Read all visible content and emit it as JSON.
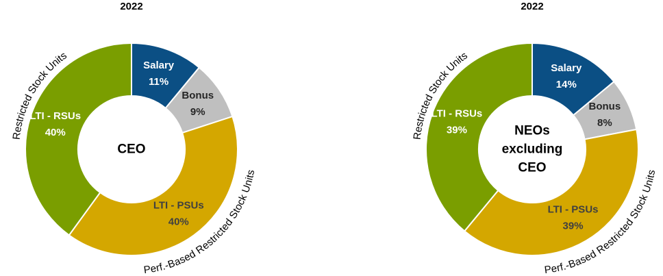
{
  "chart_data": [
    {
      "type": "donut",
      "title": "2022",
      "center_label": "CEO",
      "categories": [
        "Salary",
        "Bonus",
        "LTI - PSUs",
        "LTI - RSUs"
      ],
      "values": [
        11,
        9,
        40,
        40
      ],
      "value_labels": [
        "11%",
        "9%",
        "40%",
        "40%"
      ],
      "colors": [
        "#0b4f84",
        "#bfbfbf",
        "#d4a700",
        "#7a9e00"
      ],
      "label_colors": [
        "#ffffff",
        "#262626",
        "#404040",
        "#ffffff"
      ],
      "annotations": [
        "Restricted Stock Units",
        "Perf.-Based Restricted Stock Units"
      ]
    },
    {
      "type": "donut",
      "title": "2022",
      "center_label": "NEOs excluding CEO",
      "categories": [
        "Salary",
        "Bonus",
        "LTI - PSUs",
        "LTI - RSUs"
      ],
      "values": [
        14,
        8,
        39,
        39
      ],
      "value_labels": [
        "14%",
        "8%",
        "39%",
        "39%"
      ],
      "colors": [
        "#0b4f84",
        "#bfbfbf",
        "#d4a700",
        "#7a9e00"
      ],
      "label_colors": [
        "#ffffff",
        "#262626",
        "#404040",
        "#ffffff"
      ],
      "annotations": [
        "Restricted Stock Units",
        "Perf.-Based Restricted Stock Units"
      ]
    }
  ]
}
